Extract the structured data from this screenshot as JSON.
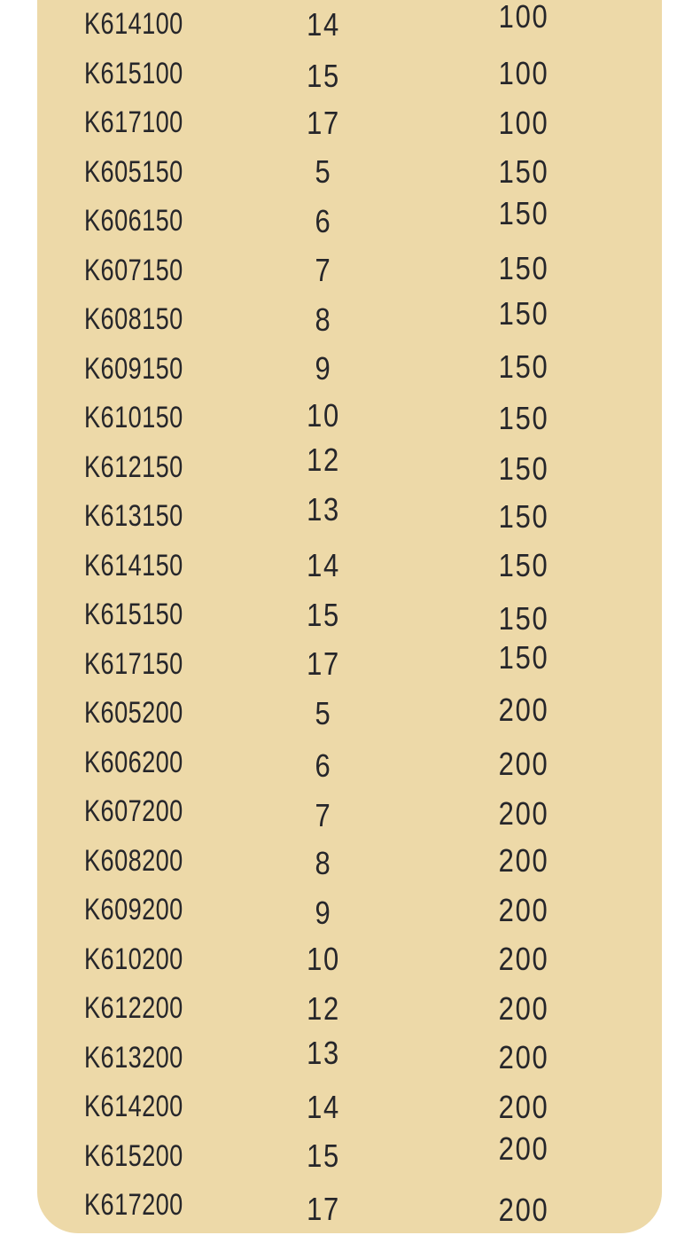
{
  "colors": {
    "page_bg": "#FFFFFF",
    "panel_bg": "#EDD9A8",
    "text": "#26262A"
  },
  "table": {
    "rows": [
      {
        "code": "K614100",
        "qty": "14",
        "size": "100"
      },
      {
        "code": "K615100",
        "qty": "15",
        "size": "100"
      },
      {
        "code": "K617100",
        "qty": "17",
        "size": "100"
      },
      {
        "code": "K605150",
        "qty": "5",
        "size": "150"
      },
      {
        "code": "K606150",
        "qty": "6",
        "size": "150"
      },
      {
        "code": "K607150",
        "qty": "7",
        "size": "150"
      },
      {
        "code": "K608150",
        "qty": "8",
        "size": "150"
      },
      {
        "code": "K609150",
        "qty": "9",
        "size": "150"
      },
      {
        "code": "K610150",
        "qty": "10",
        "size": "150"
      },
      {
        "code": "K612150",
        "qty": "12",
        "size": "150"
      },
      {
        "code": "K613150",
        "qty": "13",
        "size": "150"
      },
      {
        "code": "K614150",
        "qty": "14",
        "size": "150"
      },
      {
        "code": "K615150",
        "qty": "15",
        "size": "150"
      },
      {
        "code": "K617150",
        "qty": "17",
        "size": "150"
      },
      {
        "code": "K605200",
        "qty": "5",
        "size": "200"
      },
      {
        "code": "K606200",
        "qty": "6",
        "size": "200"
      },
      {
        "code": "K607200",
        "qty": "7",
        "size": "200"
      },
      {
        "code": "K608200",
        "qty": "8",
        "size": "200"
      },
      {
        "code": "K609200",
        "qty": "9",
        "size": "200"
      },
      {
        "code": "K610200",
        "qty": "10",
        "size": "200"
      },
      {
        "code": "K612200",
        "qty": "12",
        "size": "200"
      },
      {
        "code": "K613200",
        "qty": "13",
        "size": "200"
      },
      {
        "code": "K614200",
        "qty": "14",
        "size": "200"
      },
      {
        "code": "K615200",
        "qty": "15",
        "size": "200"
      },
      {
        "code": "K617200",
        "qty": "17",
        "size": "200"
      }
    ]
  }
}
